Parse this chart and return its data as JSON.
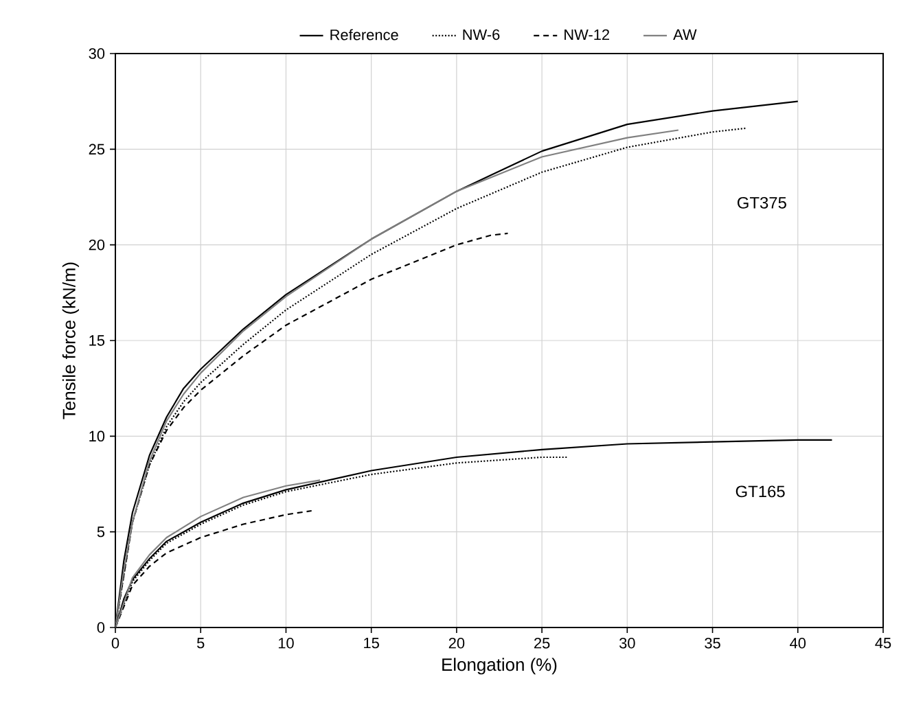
{
  "chart_data": {
    "type": "line",
    "xlabel": "Elongation (%)",
    "ylabel": "Tensile force (kN/m)",
    "xlim": [
      0,
      45
    ],
    "ylim": [
      0,
      30
    ],
    "xticks": [
      0,
      5,
      10,
      15,
      20,
      25,
      30,
      35,
      40,
      45
    ],
    "yticks": [
      0,
      5,
      10,
      15,
      20,
      25,
      30
    ],
    "grid": true,
    "legend": "top",
    "marker": "none",
    "annotations": [
      "GT375",
      "GT165"
    ],
    "series": [
      {
        "name": "Reference",
        "color": "#000000",
        "line_style": "solid",
        "x": [
          0,
          0.5,
          1,
          2,
          3,
          4,
          5,
          7.5,
          10,
          15,
          20,
          25,
          30,
          35,
          40
        ],
        "values": [
          0,
          3.5,
          6,
          9,
          11,
          12.5,
          13.5,
          15.6,
          17.4,
          20.3,
          22.8,
          24.9,
          26.3,
          27,
          27.5
        ]
      },
      {
        "name": "NW-6",
        "color": "#000000",
        "line_style": "dotted",
        "x": [
          0,
          1,
          2,
          3,
          4,
          5,
          7.5,
          10,
          15,
          20,
          25,
          30,
          35,
          37
        ],
        "values": [
          0,
          5.5,
          8.5,
          10.5,
          11.8,
          12.8,
          14.8,
          16.6,
          19.5,
          21.9,
          23.8,
          25.1,
          25.9,
          26.1
        ]
      },
      {
        "name": "NW-12",
        "color": "#000000",
        "line_style": "dashed",
        "x": [
          0,
          1,
          2,
          3,
          4,
          5,
          7.5,
          10,
          15,
          20,
          22,
          23
        ],
        "values": [
          0,
          5.5,
          8.5,
          10.3,
          11.5,
          12.4,
          14.2,
          15.8,
          18.2,
          20.0,
          20.5,
          20.6
        ]
      },
      {
        "name": "AW",
        "color": "#808080",
        "line_style": "solid",
        "x": [
          0,
          0.5,
          1,
          2,
          3,
          4,
          5,
          7.5,
          10,
          15,
          20,
          25,
          30,
          33
        ],
        "values": [
          0,
          3,
          5.5,
          8.7,
          10.8,
          12.2,
          13.3,
          15.5,
          17.3,
          20.3,
          22.8,
          24.6,
          25.6,
          26.0
        ]
      },
      {
        "color": "#000000",
        "line_style": "solid",
        "x": [
          0,
          0.5,
          1,
          2,
          3,
          5,
          7.5,
          10,
          15,
          20,
          25,
          30,
          35,
          40,
          42
        ],
        "values": [
          0,
          1.5,
          2.5,
          3.6,
          4.5,
          5.5,
          6.5,
          7.2,
          8.2,
          8.9,
          9.3,
          9.6,
          9.7,
          9.8,
          9.8
        ]
      },
      {
        "color": "#000000",
        "line_style": "dotted",
        "x": [
          0,
          1,
          2,
          3,
          5,
          7.5,
          10,
          15,
          20,
          25,
          26.5
        ],
        "values": [
          0,
          2.4,
          3.5,
          4.4,
          5.4,
          6.4,
          7.1,
          8.0,
          8.6,
          8.9,
          8.9
        ]
      },
      {
        "color": "#000000",
        "line_style": "dashed",
        "x": [
          0,
          1,
          2,
          3,
          5,
          7.5,
          10,
          11.5
        ],
        "values": [
          0,
          2.2,
          3.2,
          3.9,
          4.7,
          5.4,
          5.9,
          6.1
        ]
      },
      {
        "color": "#808080",
        "line_style": "solid",
        "x": [
          0,
          1,
          2,
          3,
          5,
          7.5,
          10,
          12
        ],
        "values": [
          0,
          2.6,
          3.8,
          4.7,
          5.8,
          6.8,
          7.4,
          7.7
        ]
      }
    ]
  }
}
